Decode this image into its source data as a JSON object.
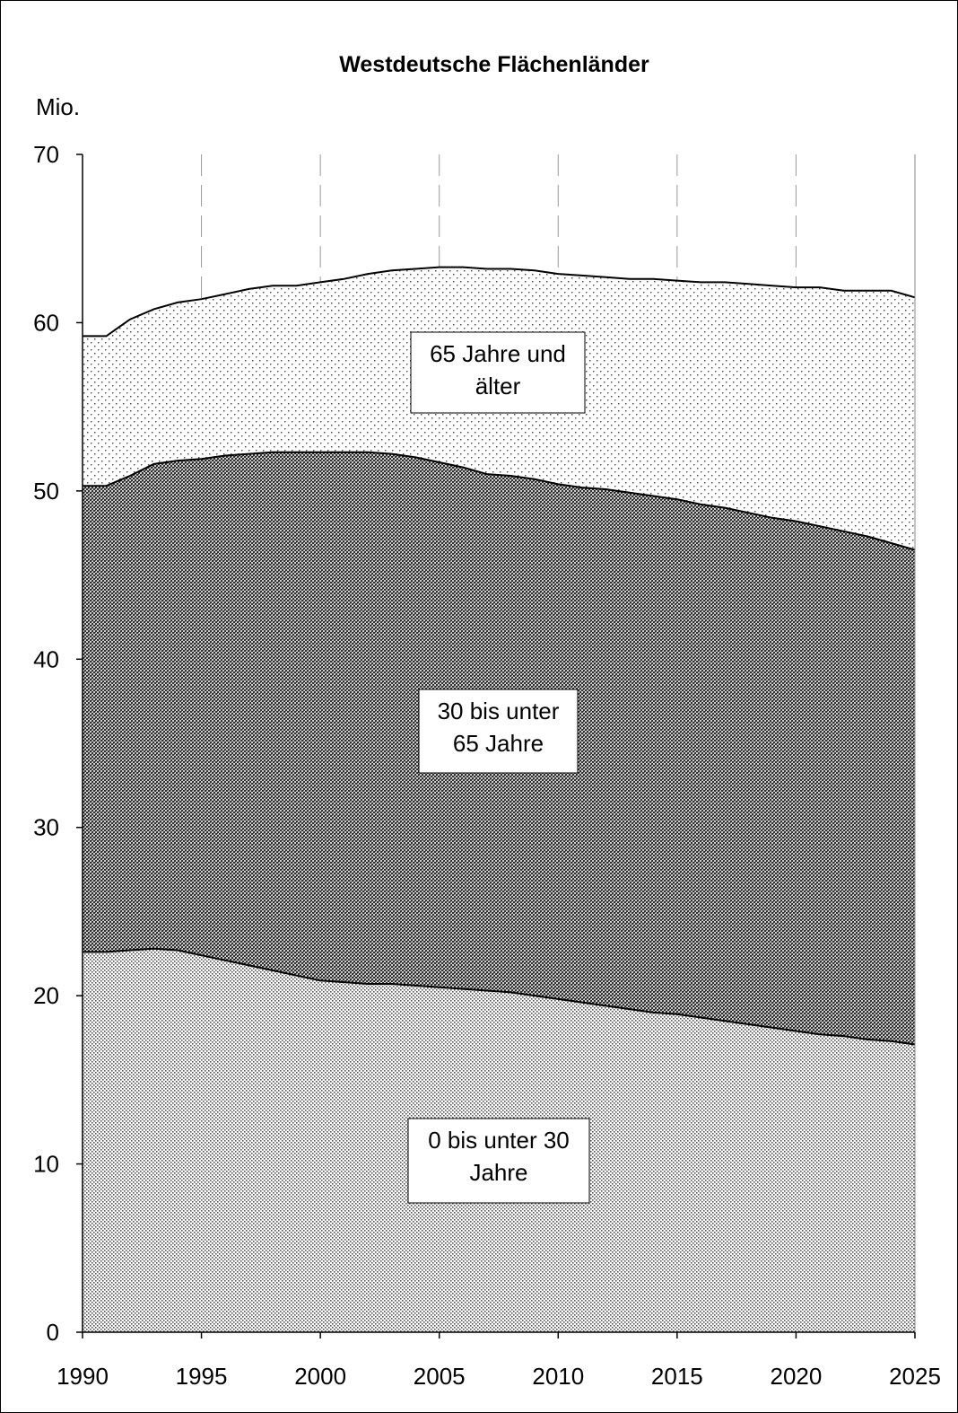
{
  "chart_data": {
    "type": "area",
    "stacked": true,
    "title": "Westdeutsche Flächenländer",
    "ylabel": "Mio.",
    "xlabel": "",
    "xlim": [
      1990,
      2025
    ],
    "ylim": [
      0,
      70
    ],
    "x_ticks": [
      1990,
      1995,
      2000,
      2005,
      2010,
      2015,
      2020,
      2025
    ],
    "y_ticks": [
      0,
      10,
      20,
      30,
      40,
      50,
      60,
      70
    ],
    "grid": "dashed vertical lines at x ticks",
    "x": [
      1990,
      1991,
      1992,
      1993,
      1994,
      1995,
      1996,
      1997,
      1998,
      1999,
      2000,
      2001,
      2002,
      2003,
      2004,
      2005,
      2006,
      2007,
      2008,
      2009,
      2010,
      2011,
      2012,
      2013,
      2014,
      2015,
      2016,
      2017,
      2018,
      2019,
      2020,
      2021,
      2022,
      2023,
      2024,
      2025
    ],
    "series": [
      {
        "label": "0 bis unter 30 Jahre",
        "pattern": "fine-dots",
        "values": [
          22.6,
          22.6,
          22.7,
          22.8,
          22.7,
          22.4,
          22.1,
          21.8,
          21.5,
          21.2,
          20.9,
          20.8,
          20.7,
          20.7,
          20.6,
          20.5,
          20.4,
          20.3,
          20.2,
          20.0,
          19.8,
          19.6,
          19.4,
          19.2,
          19.0,
          18.9,
          18.7,
          18.5,
          18.3,
          18.1,
          17.9,
          17.7,
          17.6,
          17.4,
          17.3,
          17.1
        ]
      },
      {
        "label": "30 bis unter 65 Jahre",
        "pattern": "dense-crosshatch",
        "values": [
          27.7,
          27.7,
          28.2,
          28.8,
          29.1,
          29.5,
          30.0,
          30.4,
          30.8,
          31.1,
          31.4,
          31.5,
          31.6,
          31.5,
          31.4,
          31.2,
          31.0,
          30.7,
          30.7,
          30.7,
          30.6,
          30.6,
          30.7,
          30.7,
          30.7,
          30.6,
          30.5,
          30.5,
          30.4,
          30.3,
          30.3,
          30.2,
          30.0,
          29.9,
          29.6,
          29.4
        ]
      },
      {
        "label": "65 Jahre und älter",
        "pattern": "sparse-dots",
        "values": [
          8.9,
          8.9,
          9.3,
          9.2,
          9.4,
          9.5,
          9.6,
          9.8,
          9.9,
          9.9,
          10.1,
          10.3,
          10.6,
          10.9,
          11.2,
          11.6,
          11.9,
          12.2,
          12.3,
          12.4,
          12.5,
          12.6,
          12.6,
          12.7,
          12.9,
          13.0,
          13.2,
          13.4,
          13.6,
          13.8,
          13.9,
          14.2,
          14.3,
          14.6,
          15.0,
          15.0
        ]
      }
    ],
    "annotations": [
      {
        "lines": [
          "65 Jahre und",
          "älter"
        ]
      },
      {
        "lines": [
          "30 bis unter",
          "65 Jahre"
        ]
      },
      {
        "lines": [
          "0 bis unter 30",
          "Jahre"
        ]
      }
    ]
  }
}
